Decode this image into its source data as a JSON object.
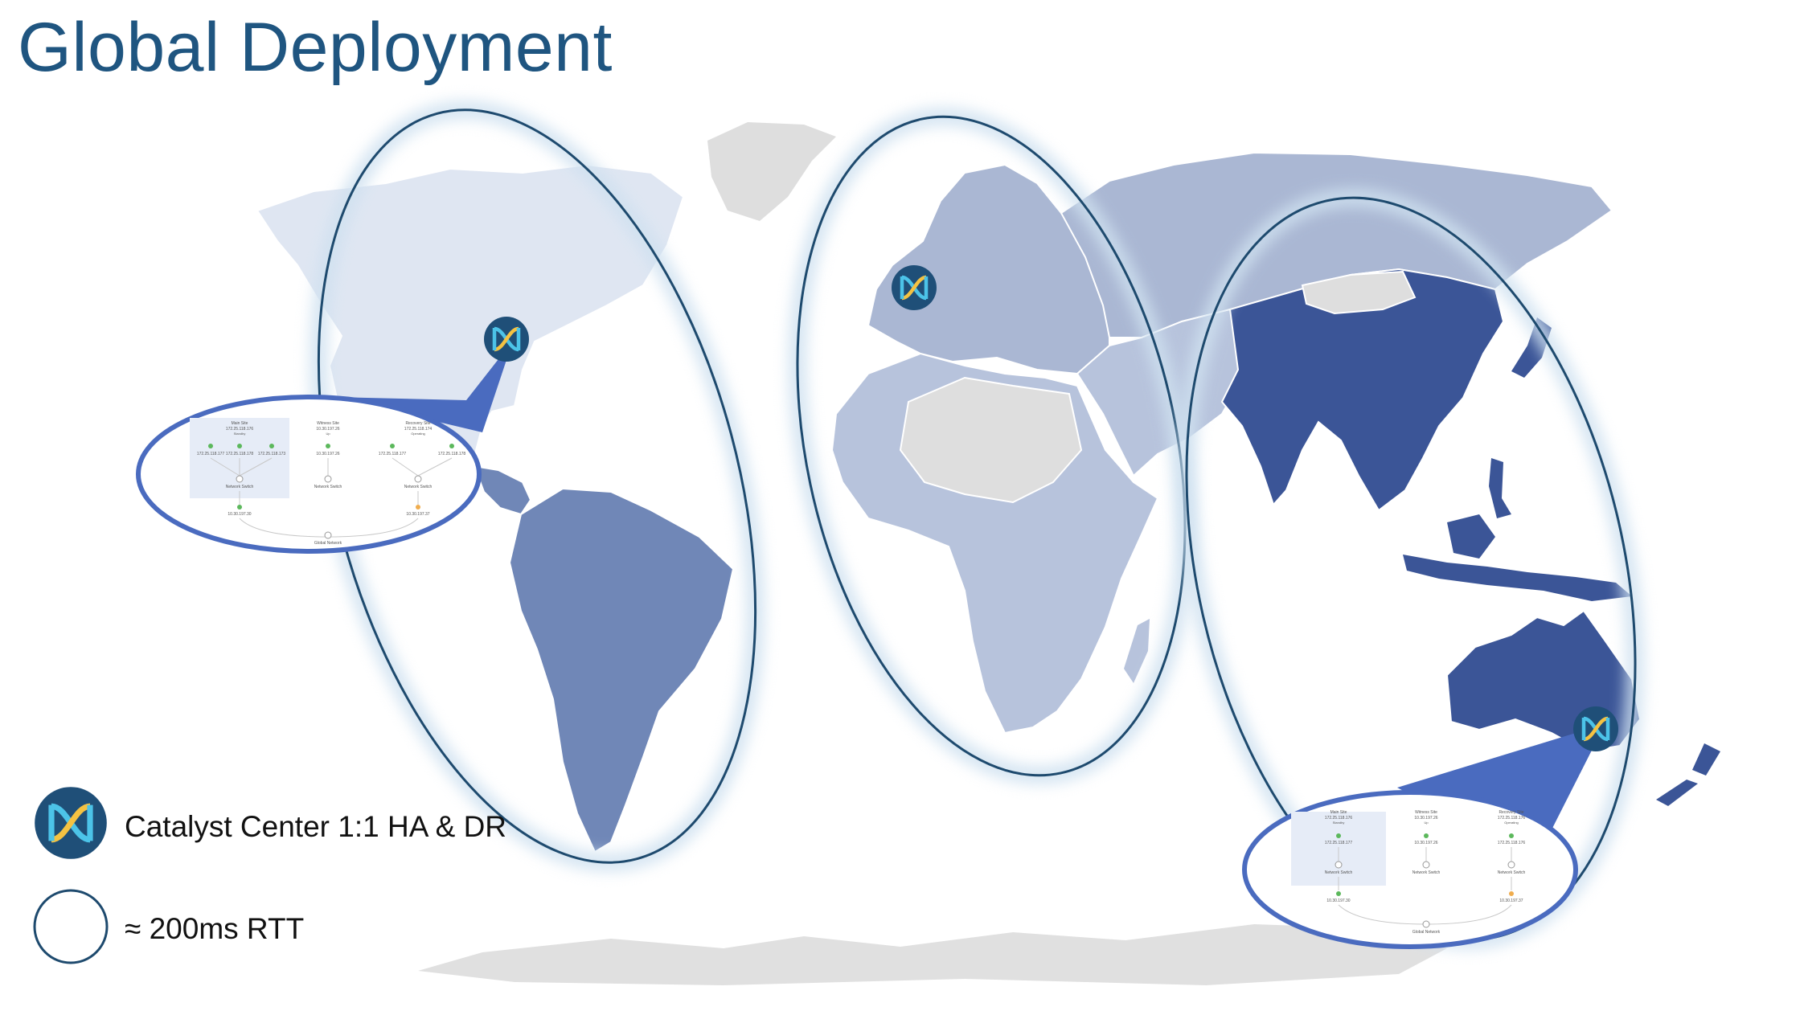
{
  "title": "Global Deployment",
  "legend": {
    "catalyst_label": "Catalyst Center 1:1 HA & DR",
    "rtt_label": "≈ 200ms RTT"
  },
  "icons": {
    "catalyst": "catalyst-center-icon",
    "rtt": "rtt-circle-icon"
  },
  "colors": {
    "title": "#1f5580",
    "ellipse_stroke": "#1e4a6e",
    "callout": "#4a6bbf",
    "americas_north": "#dfe6f2",
    "americas_south": "#7087b7",
    "emea_europe": "#aab7d3",
    "emea_africa": "#b7c3dc",
    "apac": "#3b5597",
    "unselected": "#dedede",
    "icon_bg": "#1f4f78",
    "icon_accent": "#4cc3e8"
  },
  "callouts": {
    "americas": {
      "main_site": "Main Site",
      "main_ip": "172.25.118.176",
      "main_role": "Standby",
      "witness_site": "Witness Site",
      "witness_ip": "10.30.197.26",
      "witness_role": "Up",
      "recovery_site": "Recovery Site",
      "recovery_ip": "172.25.118.174",
      "recovery_role": "Operating",
      "main_nodes": [
        "172.25.118.177",
        "172.25.118.178",
        "172.25.118.173"
      ],
      "witness_node": "10.30.197.26",
      "recovery_nodes": [
        "172.25.118.177",
        "172.25.118.178"
      ],
      "switch_label": "Network Switch",
      "main_gw": "10.30.197.30",
      "recovery_gw": "10.30.197.37",
      "network_label": "Global Network"
    },
    "apac": {
      "main_site": "Main Site",
      "main_ip": "172.25.118.176",
      "main_role": "Standby",
      "witness_site": "Witness Site",
      "witness_ip": "10.30.197.26",
      "witness_role": "Up",
      "recovery_site": "Recovery Site",
      "recovery_ip": "172.25.118.176",
      "recovery_role": "Operating",
      "main_node": "172.25.118.177",
      "witness_node": "10.30.197.26",
      "recovery_node": "172.25.118.176",
      "switch_label": "Network Switch",
      "main_gw": "10.30.197.30",
      "recovery_gw": "10.30.197.37",
      "network_label": "Global Network"
    }
  }
}
